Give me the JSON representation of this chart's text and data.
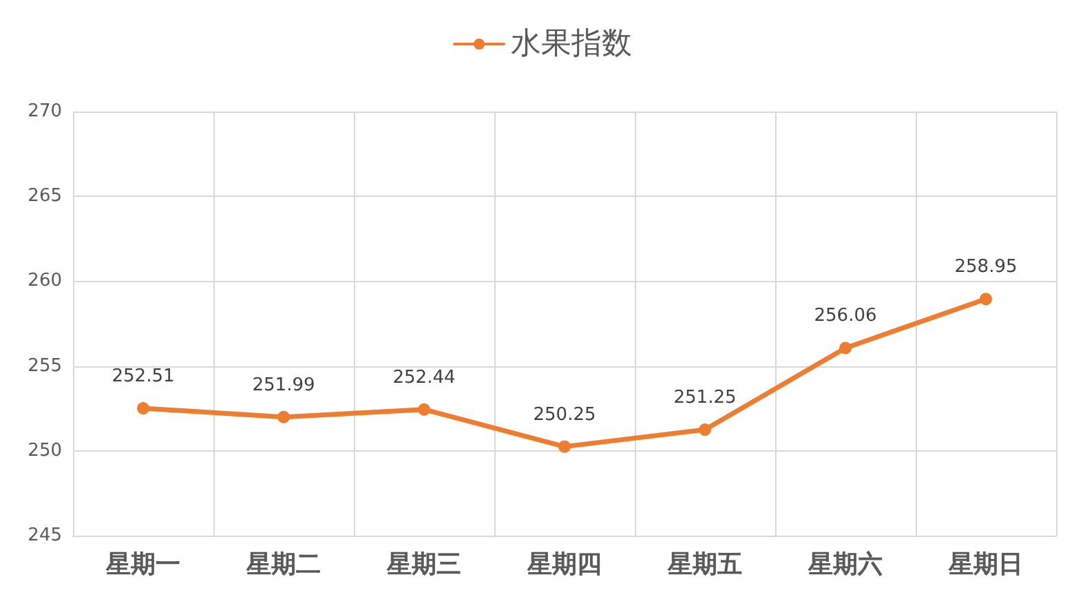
{
  "chart_data": {
    "type": "line",
    "categories": [
      "星期一",
      "星期二",
      "星期三",
      "星期四",
      "星期五",
      "星期六",
      "星期日"
    ],
    "series": [
      {
        "name": "水果指数",
        "color": "#ed7d31",
        "values": [
          252.51,
          251.99,
          252.44,
          250.25,
          251.25,
          256.06,
          258.95
        ]
      }
    ],
    "ylim": [
      245,
      270
    ],
    "yticks": [
      245,
      250,
      255,
      260,
      265,
      270
    ],
    "grid": true,
    "legend": "top",
    "marker": "circle",
    "line_style": "solid",
    "data_labels": true
  }
}
